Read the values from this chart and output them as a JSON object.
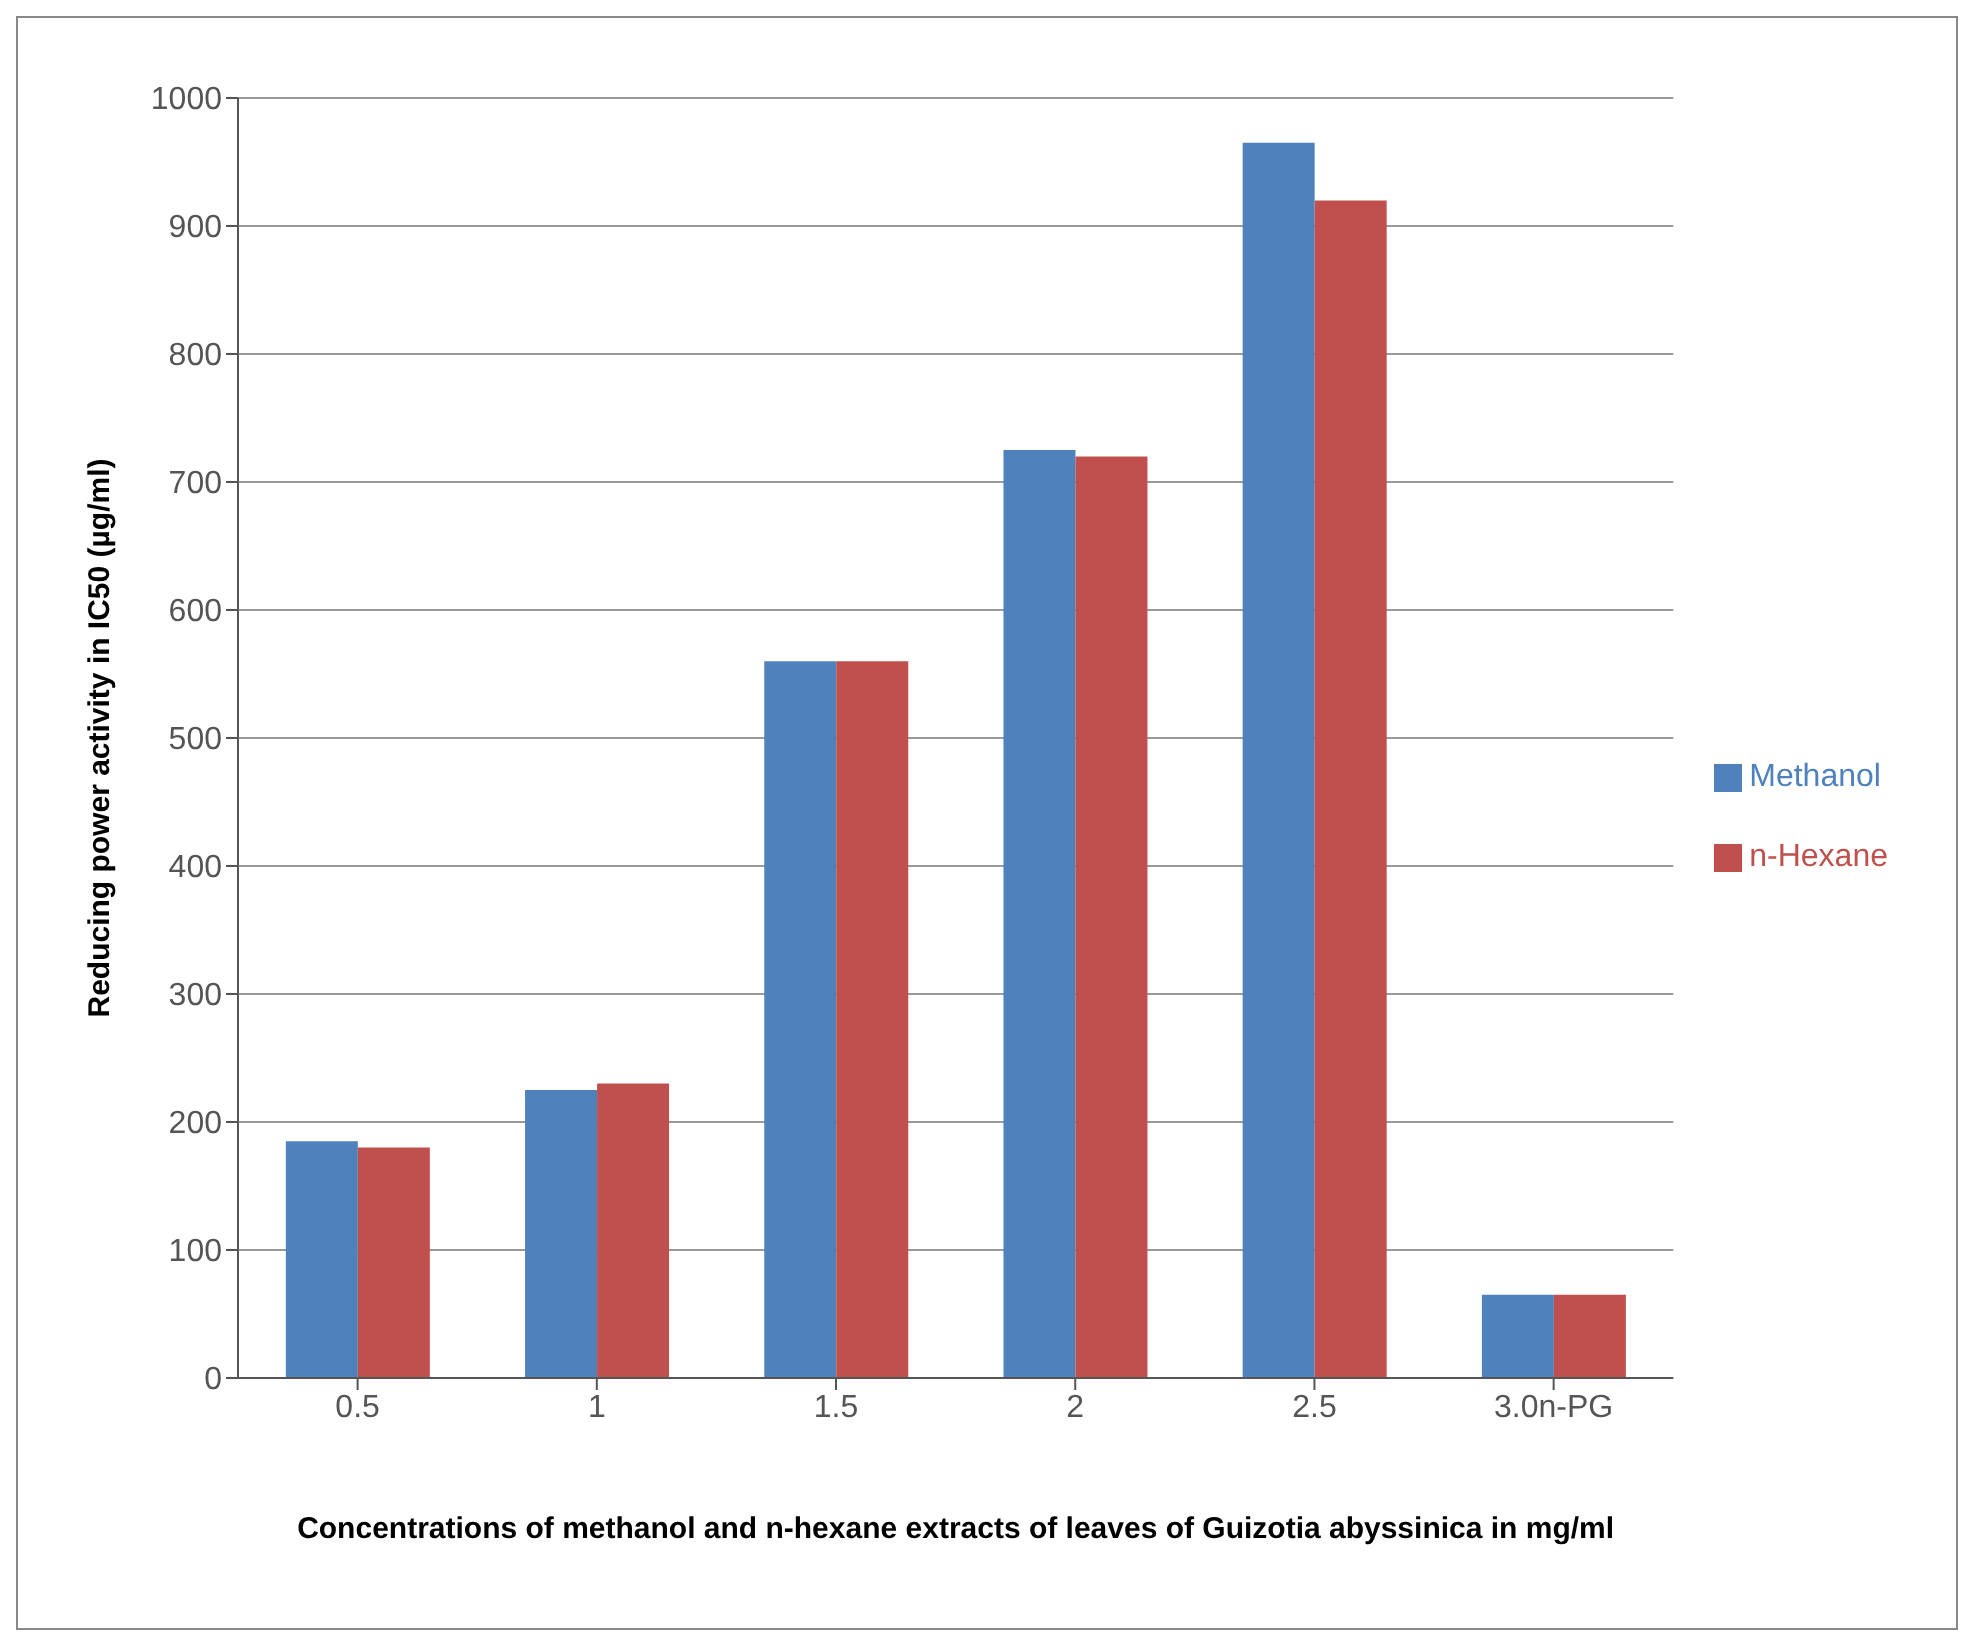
{
  "chart_data": {
    "type": "bar",
    "xlabel": "Concentrations of methanol and n-hexane extracts of leaves of Guizotia abyssinica in mg/ml",
    "ylabel": "Reducing power activity in IC50 (µg/ml)",
    "categories": [
      "0.5",
      "1",
      "1.5",
      "2",
      "2.5",
      "3.0n-PG"
    ],
    "series": [
      {
        "name": "Methanol",
        "color": "#4f81bd",
        "values": [
          185,
          225,
          560,
          725,
          965,
          65
        ]
      },
      {
        "name": "n-Hexane",
        "color": "#c0504d",
        "values": [
          180,
          230,
          560,
          720,
          920,
          65
        ]
      }
    ],
    "ylim": [
      0,
      1000
    ],
    "yticks": [
      0,
      100,
      200,
      300,
      400,
      500,
      600,
      700,
      800,
      900,
      1000
    ],
    "grid": "y",
    "legend": "right"
  }
}
